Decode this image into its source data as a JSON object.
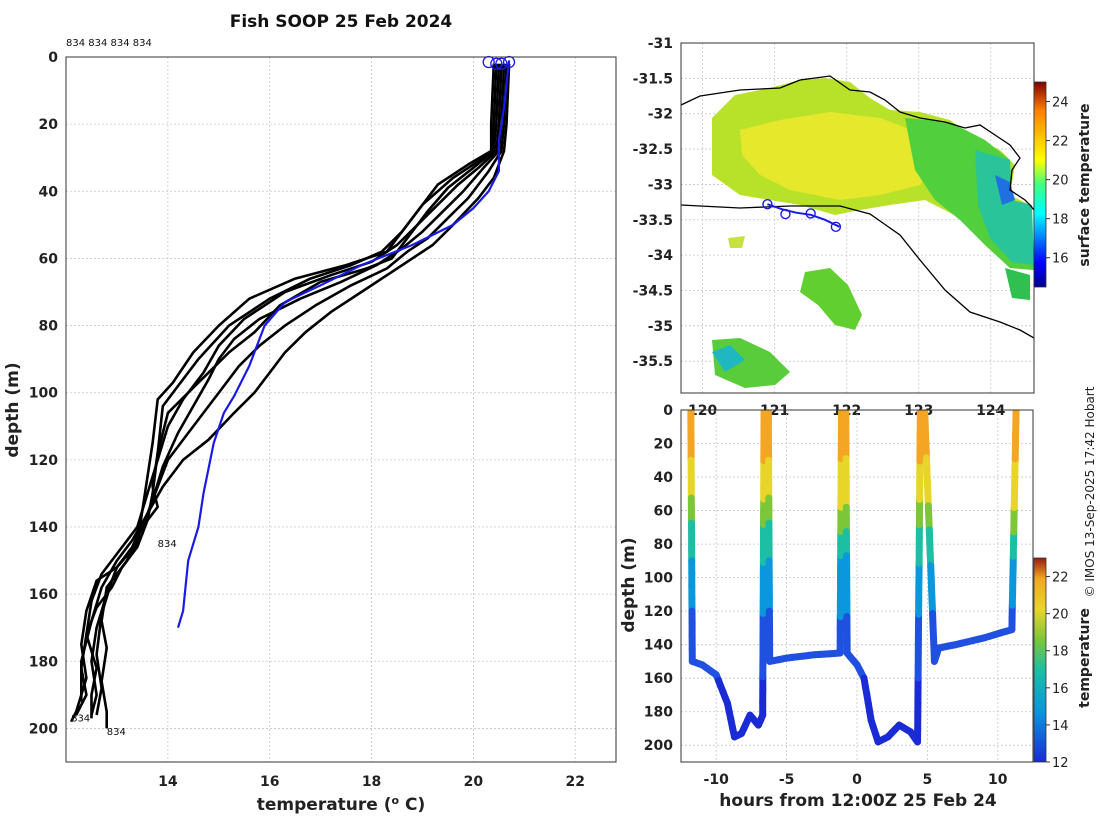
{
  "chart_data": [
    {
      "id": "profiles",
      "type": "line",
      "title": "Fish SOOP 25 Feb 2024",
      "xlabel_main": "temperature (",
      "xlabel_sup": "o",
      "xlabel_end": " C)",
      "ylabel": "depth (m)",
      "xlim": [
        12,
        22.8
      ],
      "ylim": [
        0,
        210
      ],
      "x_ticks": [
        14,
        16,
        18,
        20,
        22
      ],
      "y_ticks": [
        0,
        20,
        40,
        60,
        80,
        100,
        120,
        140,
        160,
        180,
        200
      ],
      "top_label": "834 834 834 834",
      "profile_labels": [
        {
          "text": "834",
          "temp": 13.8,
          "depth": 146
        },
        {
          "text": "834",
          "temp": 12.1,
          "depth": 198
        },
        {
          "text": "834",
          "temp": 12.8,
          "depth": 202
        }
      ],
      "surface_markers": [
        {
          "temp": 20.3,
          "depth": 1.5
        },
        {
          "temp": 20.45,
          "depth": 2
        },
        {
          "temp": 20.55,
          "depth": 2
        },
        {
          "temp": 20.7,
          "depth": 1.5
        }
      ],
      "series": [
        {
          "name": "profile-1",
          "color": "#000000",
          "points": [
            [
              20.4,
              2
            ],
            [
              20.35,
              20
            ],
            [
              20.35,
              28
            ],
            [
              19.9,
              32
            ],
            [
              19.3,
              38
            ],
            [
              18.8,
              48
            ],
            [
              18.3,
              58
            ],
            [
              17.5,
              62
            ],
            [
              16.5,
              66
            ],
            [
              15.6,
              72
            ],
            [
              15.0,
              80
            ],
            [
              14.5,
              88
            ],
            [
              14.1,
              97
            ],
            [
              13.8,
              102
            ],
            [
              13.7,
              115
            ],
            [
              13.6,
              125
            ],
            [
              13.5,
              135
            ],
            [
              13.4,
              145
            ],
            [
              13.0,
              152
            ],
            [
              12.6,
              156
            ],
            [
              12.4,
              165
            ],
            [
              12.3,
              175
            ],
            [
              12.4,
              185
            ],
            [
              12.2,
              195
            ],
            [
              12.1,
              198
            ]
          ]
        },
        {
          "name": "profile-2",
          "color": "#000000",
          "points": [
            [
              20.5,
              2
            ],
            [
              20.45,
              20
            ],
            [
              20.4,
              28
            ],
            [
              20.0,
              32
            ],
            [
              19.6,
              36
            ],
            [
              19.0,
              44
            ],
            [
              18.6,
              52
            ],
            [
              18.2,
              58
            ],
            [
              17.6,
              62
            ],
            [
              16.8,
              66
            ],
            [
              16.0,
              72
            ],
            [
              15.2,
              80
            ],
            [
              14.6,
              90
            ],
            [
              14.2,
              98
            ],
            [
              13.9,
              104
            ],
            [
              13.8,
              118
            ],
            [
              13.7,
              128
            ],
            [
              13.8,
              134
            ],
            [
              13.5,
              140
            ],
            [
              13.2,
              150
            ],
            [
              12.8,
              158
            ],
            [
              12.7,
              168
            ],
            [
              12.8,
              176
            ],
            [
              12.7,
              186
            ],
            [
              12.8,
              195
            ],
            [
              12.8,
              200
            ]
          ]
        },
        {
          "name": "profile-3",
          "color": "#000000",
          "points": [
            [
              20.55,
              2
            ],
            [
              20.5,
              20
            ],
            [
              20.45,
              28
            ],
            [
              20.1,
              33
            ],
            [
              19.7,
              38
            ],
            [
              19.3,
              44
            ],
            [
              18.9,
              50
            ],
            [
              18.5,
              56
            ],
            [
              18.0,
              61
            ],
            [
              17.2,
              65
            ],
            [
              16.3,
              70
            ],
            [
              15.5,
              78
            ],
            [
              15.0,
              86
            ],
            [
              14.7,
              94
            ],
            [
              14.3,
              102
            ],
            [
              14.0,
              110
            ],
            [
              13.8,
              120
            ],
            [
              13.6,
              130
            ],
            [
              13.4,
              140
            ],
            [
              13.0,
              148
            ],
            [
              12.7,
              154
            ],
            [
              12.5,
              162
            ],
            [
              12.4,
              172
            ],
            [
              12.6,
              182
            ],
            [
              12.5,
              190
            ],
            [
              12.5,
              197
            ]
          ]
        },
        {
          "name": "profile-4",
          "color": "#000000",
          "points": [
            [
              20.6,
              2
            ],
            [
              20.55,
              20
            ],
            [
              20.5,
              28
            ],
            [
              20.2,
              33
            ],
            [
              19.8,
              40
            ],
            [
              19.4,
              46
            ],
            [
              19.0,
              52
            ],
            [
              18.6,
              57
            ],
            [
              18.1,
              62
            ],
            [
              17.4,
              67
            ],
            [
              16.6,
              72
            ],
            [
              15.8,
              78
            ],
            [
              15.3,
              84
            ],
            [
              15.0,
              90
            ],
            [
              14.8,
              96
            ],
            [
              14.5,
              104
            ],
            [
              14.2,
              112
            ],
            [
              13.9,
              122
            ],
            [
              13.7,
              132
            ],
            [
              13.5,
              142
            ],
            [
              13.2,
              150
            ],
            [
              12.9,
              156
            ],
            [
              12.7,
              166
            ],
            [
              12.6,
              178
            ],
            [
              12.7,
              188
            ],
            [
              12.6,
              196
            ]
          ]
        },
        {
          "name": "profile-5",
          "color": "#000000",
          "points": [
            [
              20.65,
              2
            ],
            [
              20.6,
              20
            ],
            [
              20.55,
              28
            ],
            [
              20.3,
              34
            ],
            [
              19.9,
              42
            ],
            [
              19.5,
              48
            ],
            [
              19.1,
              54
            ],
            [
              18.7,
              58
            ],
            [
              18.3,
              63
            ],
            [
              17.6,
              68
            ],
            [
              16.9,
              74
            ],
            [
              16.3,
              80
            ],
            [
              15.8,
              86
            ],
            [
              15.4,
              92
            ],
            [
              15.1,
              98
            ],
            [
              14.8,
              104
            ],
            [
              14.4,
              112
            ],
            [
              14.0,
              120
            ],
            [
              13.8,
              128
            ],
            [
              13.6,
              136
            ],
            [
              13.3,
              146
            ],
            [
              13.0,
              152
            ],
            [
              12.8,
              160
            ],
            [
              12.6,
              170
            ],
            [
              12.5,
              180
            ],
            [
              12.6,
              190
            ],
            [
              12.5,
              196
            ]
          ]
        },
        {
          "name": "profile-6",
          "color": "#000000",
          "points": [
            [
              20.7,
              2
            ],
            [
              20.65,
              20
            ],
            [
              20.6,
              28
            ],
            [
              20.4,
              36
            ],
            [
              20.1,
              42
            ],
            [
              19.6,
              50
            ],
            [
              19.2,
              56
            ],
            [
              18.8,
              60
            ],
            [
              18.4,
              64
            ],
            [
              17.8,
              70
            ],
            [
              17.2,
              76
            ],
            [
              16.7,
              82
            ],
            [
              16.3,
              88
            ],
            [
              16.0,
              94
            ],
            [
              15.7,
              100
            ],
            [
              15.3,
              106
            ],
            [
              14.8,
              114
            ],
            [
              14.3,
              120
            ],
            [
              13.9,
              128
            ],
            [
              13.6,
              136
            ],
            [
              13.3,
              144
            ],
            [
              13.0,
              150
            ],
            [
              12.7,
              158
            ],
            [
              12.5,
              168
            ],
            [
              12.3,
              180
            ],
            [
              12.3,
              192
            ]
          ]
        },
        {
          "name": "profile-7",
          "color": "#000000",
          "points": [
            [
              20.45,
              2
            ],
            [
              20.4,
              20
            ],
            [
              20.4,
              28
            ],
            [
              20.0,
              33
            ],
            [
              19.5,
              39
            ],
            [
              19.1,
              46
            ],
            [
              18.7,
              54
            ],
            [
              18.4,
              60
            ],
            [
              17.9,
              63
            ],
            [
              17.0,
              67
            ],
            [
              16.2,
              74
            ],
            [
              15.7,
              82
            ],
            [
              15.2,
              88
            ],
            [
              14.8,
              94
            ],
            [
              14.4,
              100
            ],
            [
              14.0,
              106
            ],
            [
              13.8,
              118
            ],
            [
              13.7,
              130
            ],
            [
              13.6,
              138
            ],
            [
              13.4,
              146
            ],
            [
              13.1,
              152
            ],
            [
              12.9,
              158
            ],
            [
              12.6,
              164
            ],
            [
              12.4,
              172
            ],
            [
              12.3,
              182
            ],
            [
              12.4,
              190
            ],
            [
              12.2,
              196
            ]
          ]
        },
        {
          "name": "xbt-blue",
          "color": "#1a1ae6",
          "points": [
            [
              20.7,
              1
            ],
            [
              20.6,
              15
            ],
            [
              20.5,
              25
            ],
            [
              20.5,
              34
            ],
            [
              20.3,
              40
            ],
            [
              20.0,
              45
            ],
            [
              19.6,
              50
            ],
            [
              18.8,
              56
            ],
            [
              17.8,
              62
            ],
            [
              17.0,
              68
            ],
            [
              16.3,
              73
            ],
            [
              15.9,
              80
            ],
            [
              15.6,
              92
            ],
            [
              15.3,
              101
            ],
            [
              15.1,
              106
            ],
            [
              14.9,
              115
            ],
            [
              14.7,
              130
            ],
            [
              14.6,
              140
            ],
            [
              14.4,
              150
            ],
            [
              14.3,
              165
            ],
            [
              14.2,
              170
            ]
          ]
        }
      ]
    },
    {
      "id": "map",
      "type": "heatmap",
      "x_ticks": [
        120,
        121,
        122,
        123,
        124
      ],
      "y_ticks": [
        -31,
        -31.5,
        -32,
        -32.5,
        -33,
        -33.5,
        -34,
        -34.5,
        -35,
        -35.5
      ],
      "colorbar_label": "surface temperature",
      "colorbar_ticks": [
        16,
        18,
        20,
        22,
        24
      ],
      "colorbar_range": [
        14.5,
        25
      ],
      "track": [
        [
          120.9,
          -33.28
        ],
        [
          121.1,
          -33.35
        ],
        [
          121.3,
          -33.4
        ],
        [
          121.5,
          -33.43
        ],
        [
          121.7,
          -33.5
        ],
        [
          121.9,
          -33.6
        ]
      ],
      "track_markers": [
        [
          120.9,
          -33.28
        ],
        [
          121.15,
          -33.42
        ],
        [
          121.5,
          -33.41
        ],
        [
          121.85,
          -33.6
        ]
      ]
    },
    {
      "id": "timedepth",
      "type": "scatter",
      "xlabel": "hours from 12:00Z 25 Feb 24",
      "ylabel": "depth (m)",
      "xlim": [
        -12.5,
        12.5
      ],
      "ylim": [
        0,
        210
      ],
      "x_ticks": [
        -10,
        -5,
        0,
        5,
        10
      ],
      "y_ticks": [
        0,
        20,
        40,
        60,
        80,
        100,
        120,
        140,
        160,
        180,
        200
      ],
      "colorbar_label": "temperature",
      "colorbar_ticks": [
        12,
        14,
        16,
        18,
        20,
        22
      ],
      "colorbar_range": [
        12,
        23
      ],
      "path": [
        [
          -11.8,
          0
        ],
        [
          -11.7,
          150
        ],
        [
          -11,
          152
        ],
        [
          -10,
          158
        ],
        [
          -9.2,
          175
        ],
        [
          -8.7,
          195
        ],
        [
          -8.2,
          193
        ],
        [
          -7.6,
          182
        ],
        [
          -7.0,
          188
        ],
        [
          -6.7,
          182
        ],
        [
          -6.6,
          0
        ],
        [
          -6.3,
          0
        ],
        [
          -6.2,
          150
        ],
        [
          -5,
          148
        ],
        [
          -3,
          146
        ],
        [
          -1.2,
          145
        ],
        [
          -1.1,
          0
        ],
        [
          -0.8,
          0
        ],
        [
          -0.7,
          145
        ],
        [
          0,
          152
        ],
        [
          0.5,
          160
        ],
        [
          1,
          185
        ],
        [
          1.5,
          198
        ],
        [
          2.2,
          195
        ],
        [
          3,
          188
        ],
        [
          3.8,
          192
        ],
        [
          4.3,
          198
        ],
        [
          4.5,
          0
        ],
        [
          4.8,
          0
        ],
        [
          5.5,
          150
        ],
        [
          5.8,
          142
        ],
        [
          7,
          140
        ],
        [
          9,
          136
        ],
        [
          11,
          131
        ],
        [
          11.3,
          0
        ]
      ]
    }
  ],
  "credit": "© IMOS 13-Sep-2025 17:42 Hobart"
}
